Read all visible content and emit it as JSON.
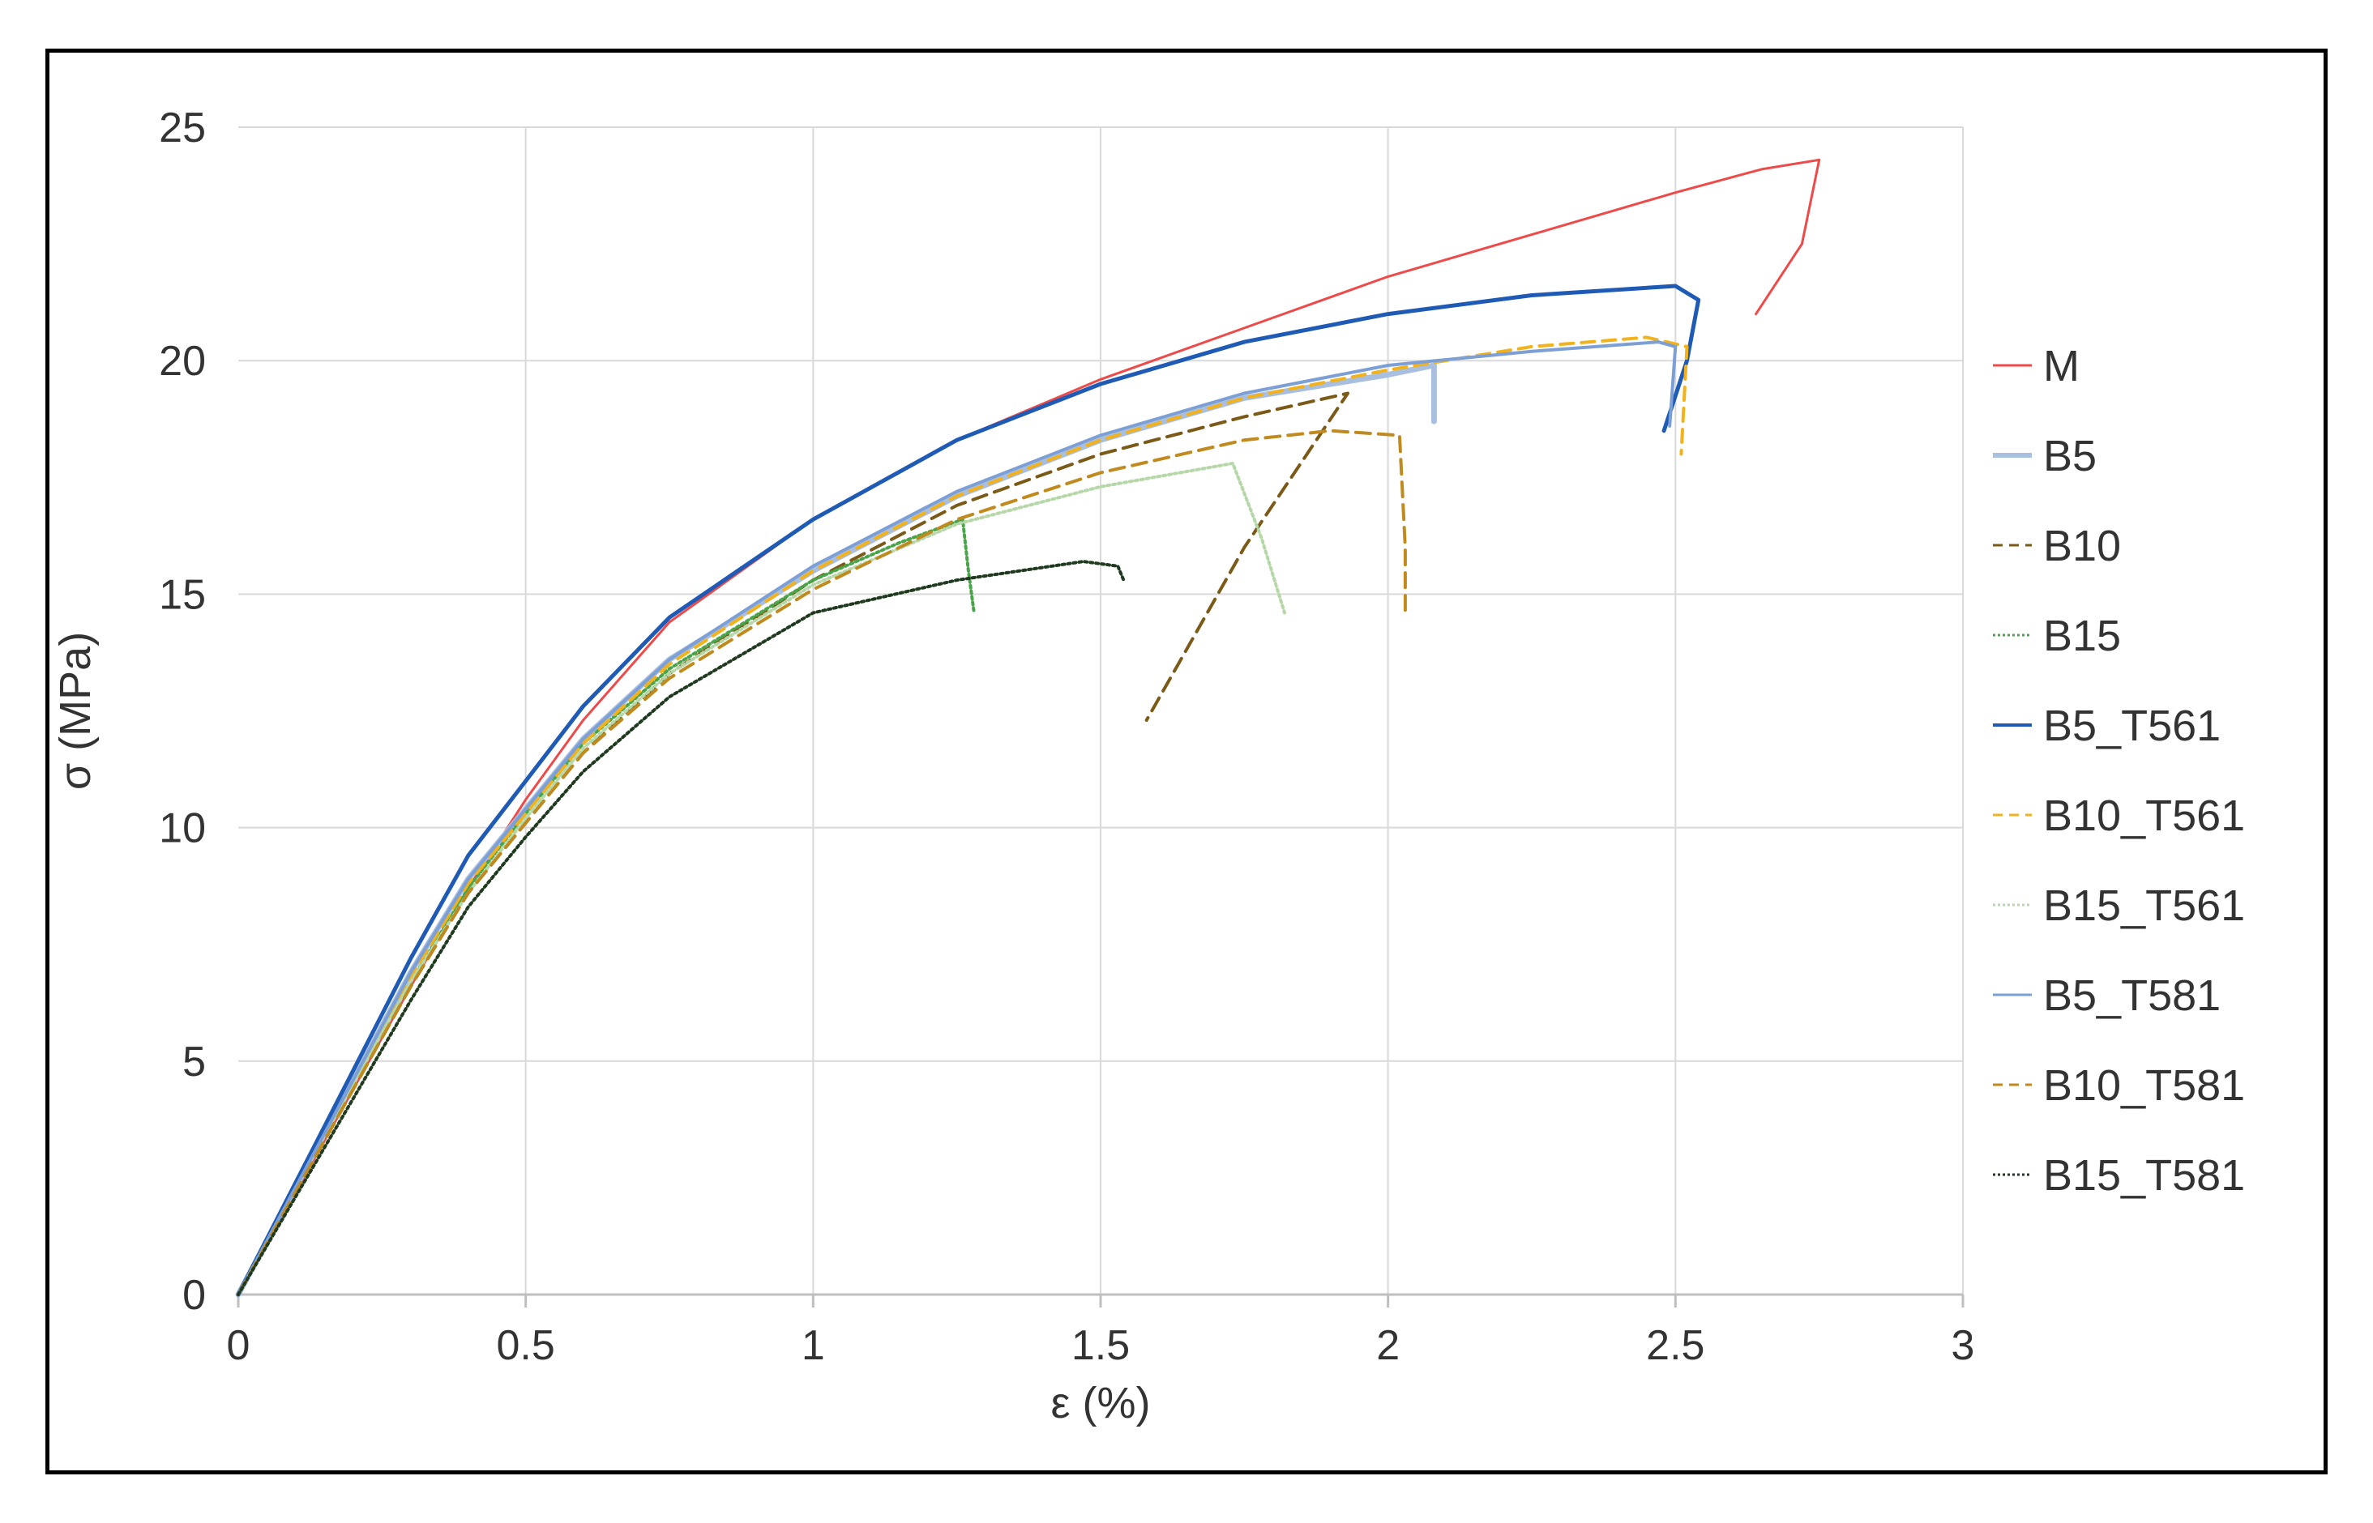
{
  "chart_data": {
    "type": "line",
    "title": "",
    "xlabel": "ε (%)",
    "ylabel": "σ (MPa)",
    "xlim": [
      0,
      3
    ],
    "ylim": [
      0,
      25
    ],
    "xticks": [
      0,
      0.5,
      1,
      1.5,
      2,
      2.5,
      3
    ],
    "xtick_labels": [
      "0",
      "0.5",
      "1",
      "1.5",
      "2",
      "2.5",
      "3"
    ],
    "yticks": [
      0,
      5,
      10,
      15,
      20,
      25
    ],
    "ytick_labels": [
      "0",
      "5",
      "10",
      "15",
      "20",
      "25"
    ],
    "grid": true,
    "legend_position": "right",
    "series": [
      {
        "name": "M",
        "color": "#ee4a4a",
        "dash": "solid",
        "width": 3,
        "points": [
          [
            0,
            0
          ],
          [
            0.1,
            2.2
          ],
          [
            0.2,
            4.4
          ],
          [
            0.3,
            6.6
          ],
          [
            0.4,
            8.7
          ],
          [
            0.5,
            10.6
          ],
          [
            0.6,
            12.3
          ],
          [
            0.75,
            14.4
          ],
          [
            1,
            16.6
          ],
          [
            1.25,
            18.3
          ],
          [
            1.5,
            19.6
          ],
          [
            1.75,
            20.7
          ],
          [
            2,
            21.8
          ],
          [
            2.25,
            22.7
          ],
          [
            2.5,
            23.6
          ],
          [
            2.65,
            24.1
          ],
          [
            2.75,
            24.3
          ],
          [
            2.72,
            22.5
          ],
          [
            2.64,
            21.0
          ]
        ]
      },
      {
        "name": "B5",
        "color": "#a9bfe0",
        "dash": "solid",
        "width": 7,
        "points": [
          [
            0,
            0
          ],
          [
            0.1,
            2.3
          ],
          [
            0.2,
            4.6
          ],
          [
            0.3,
            6.9
          ],
          [
            0.4,
            8.9
          ],
          [
            0.5,
            10.4
          ],
          [
            0.6,
            11.9
          ],
          [
            0.75,
            13.6
          ],
          [
            1,
            15.5
          ],
          [
            1.25,
            17.1
          ],
          [
            1.5,
            18.3
          ],
          [
            1.75,
            19.2
          ],
          [
            2,
            19.7
          ],
          [
            2.08,
            19.9
          ],
          [
            2.08,
            18.7
          ]
        ]
      },
      {
        "name": "B10",
        "color": "#7b5a18",
        "dash": "18,10",
        "width": 4,
        "points": [
          [
            0,
            0
          ],
          [
            0.1,
            2.2
          ],
          [
            0.2,
            4.4
          ],
          [
            0.3,
            6.6
          ],
          [
            0.4,
            8.6
          ],
          [
            0.5,
            10.1
          ],
          [
            0.6,
            11.6
          ],
          [
            0.75,
            13.3
          ],
          [
            1,
            15.3
          ],
          [
            1.25,
            16.9
          ],
          [
            1.5,
            18.0
          ],
          [
            1.75,
            18.8
          ],
          [
            1.93,
            19.3
          ],
          [
            1.75,
            16.0
          ],
          [
            1.58,
            12.3
          ]
        ]
      },
      {
        "name": "B15",
        "color": "#4aa44a",
        "dash": "3,4",
        "width": 4,
        "points": [
          [
            0,
            0
          ],
          [
            0.1,
            2.3
          ],
          [
            0.2,
            4.5
          ],
          [
            0.3,
            6.7
          ],
          [
            0.4,
            8.7
          ],
          [
            0.5,
            10.3
          ],
          [
            0.6,
            11.8
          ],
          [
            0.75,
            13.4
          ],
          [
            1,
            15.3
          ],
          [
            1.15,
            16.1
          ],
          [
            1.26,
            16.6
          ],
          [
            1.27,
            15.5
          ],
          [
            1.28,
            14.6
          ]
        ]
      },
      {
        "name": "B5_T561",
        "color": "#1f5bb5",
        "dash": "solid",
        "width": 5,
        "points": [
          [
            0,
            0
          ],
          [
            0.1,
            2.4
          ],
          [
            0.2,
            4.8
          ],
          [
            0.3,
            7.2
          ],
          [
            0.4,
            9.4
          ],
          [
            0.5,
            11.0
          ],
          [
            0.6,
            12.6
          ],
          [
            0.75,
            14.5
          ],
          [
            1,
            16.6
          ],
          [
            1.25,
            18.3
          ],
          [
            1.5,
            19.5
          ],
          [
            1.75,
            20.4
          ],
          [
            2,
            21.0
          ],
          [
            2.25,
            21.4
          ],
          [
            2.5,
            21.6
          ],
          [
            2.54,
            21.3
          ],
          [
            2.52,
            20.0
          ],
          [
            2.48,
            18.5
          ]
        ]
      },
      {
        "name": "B10_T561",
        "color": "#f2b21b",
        "dash": "16,10",
        "width": 4,
        "points": [
          [
            0,
            0
          ],
          [
            0.1,
            2.3
          ],
          [
            0.2,
            4.5
          ],
          [
            0.3,
            6.8
          ],
          [
            0.4,
            8.8
          ],
          [
            0.5,
            10.3
          ],
          [
            0.6,
            11.8
          ],
          [
            0.75,
            13.5
          ],
          [
            1,
            15.5
          ],
          [
            1.25,
            17.1
          ],
          [
            1.5,
            18.3
          ],
          [
            1.75,
            19.2
          ],
          [
            2,
            19.8
          ],
          [
            2.25,
            20.3
          ],
          [
            2.45,
            20.5
          ],
          [
            2.52,
            20.3
          ],
          [
            2.51,
            18.0
          ]
        ]
      },
      {
        "name": "B15_T561",
        "color": "#b6d8a8",
        "dash": "3,4",
        "width": 4,
        "points": [
          [
            0,
            0
          ],
          [
            0.1,
            2.3
          ],
          [
            0.2,
            4.5
          ],
          [
            0.3,
            6.7
          ],
          [
            0.4,
            8.6
          ],
          [
            0.5,
            10.2
          ],
          [
            0.6,
            11.7
          ],
          [
            0.75,
            13.3
          ],
          [
            1,
            15.2
          ],
          [
            1.25,
            16.5
          ],
          [
            1.5,
            17.3
          ],
          [
            1.73,
            17.8
          ],
          [
            1.78,
            16.2
          ],
          [
            1.82,
            14.6
          ]
        ]
      },
      {
        "name": "B5_T581",
        "color": "#7c9fd6",
        "dash": "solid",
        "width": 4,
        "points": [
          [
            0,
            0
          ],
          [
            0.1,
            2.3
          ],
          [
            0.2,
            4.6
          ],
          [
            0.3,
            6.9
          ],
          [
            0.4,
            8.9
          ],
          [
            0.5,
            10.4
          ],
          [
            0.6,
            11.9
          ],
          [
            0.75,
            13.6
          ],
          [
            1,
            15.6
          ],
          [
            1.25,
            17.2
          ],
          [
            1.5,
            18.4
          ],
          [
            1.75,
            19.3
          ],
          [
            2,
            19.9
          ],
          [
            2.25,
            20.2
          ],
          [
            2.47,
            20.4
          ],
          [
            2.5,
            20.3
          ],
          [
            2.49,
            18.6
          ]
        ]
      },
      {
        "name": "B10_T581",
        "color": "#c08a1f",
        "dash": "18,10",
        "width": 4,
        "points": [
          [
            0,
            0
          ],
          [
            0.1,
            2.2
          ],
          [
            0.2,
            4.4
          ],
          [
            0.3,
            6.6
          ],
          [
            0.4,
            8.6
          ],
          [
            0.5,
            10.1
          ],
          [
            0.6,
            11.6
          ],
          [
            0.75,
            13.2
          ],
          [
            1,
            15.1
          ],
          [
            1.25,
            16.6
          ],
          [
            1.5,
            17.6
          ],
          [
            1.75,
            18.3
          ],
          [
            1.9,
            18.5
          ],
          [
            2.02,
            18.4
          ],
          [
            2.03,
            16.0
          ],
          [
            2.03,
            14.6
          ]
        ]
      },
      {
        "name": "B15_T581",
        "color": "#1f3a1f",
        "dash": "3,4",
        "width": 4,
        "points": [
          [
            0,
            0
          ],
          [
            0.1,
            2.1
          ],
          [
            0.2,
            4.2
          ],
          [
            0.3,
            6.3
          ],
          [
            0.4,
            8.3
          ],
          [
            0.5,
            9.8
          ],
          [
            0.6,
            11.2
          ],
          [
            0.75,
            12.8
          ],
          [
            1,
            14.6
          ],
          [
            1.25,
            15.3
          ],
          [
            1.47,
            15.7
          ],
          [
            1.53,
            15.6
          ],
          [
            1.54,
            15.3
          ]
        ]
      }
    ]
  }
}
